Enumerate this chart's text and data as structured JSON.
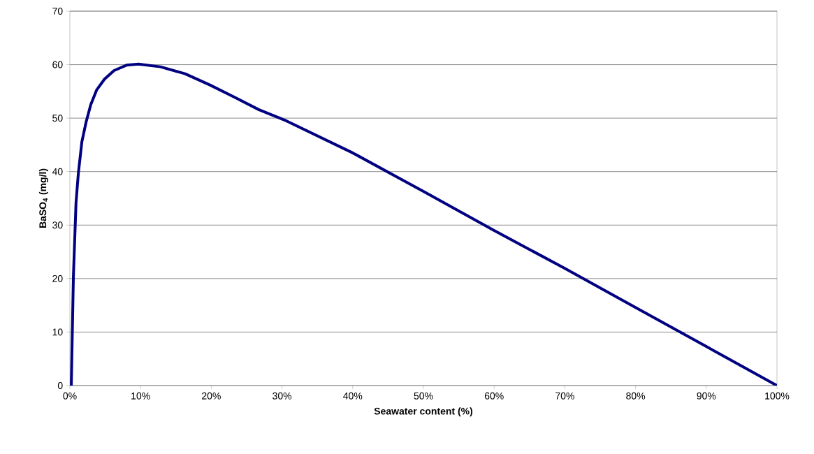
{
  "chart_data": {
    "type": "line",
    "xlabel": "Seawater content (%)",
    "ylabel": "BaSO$_{4}$ (mg/l)",
    "x": [
      0.2,
      0.5,
      0.87,
      1.2,
      1.7,
      2.3,
      2.95,
      3.8,
      4.9,
      6.25,
      8,
      9.7,
      12.8,
      16.3,
      19.8,
      23.3,
      26.7,
      30.6,
      40,
      50,
      60,
      70,
      80,
      90,
      100
    ],
    "series": [
      {
        "color": "#000080",
        "values": [
          0,
          20.4,
          34.2,
          39.7,
          45.6,
          49.3,
          52.5,
          55.3,
          57.3,
          58.9,
          59.9,
          60.1,
          59.6,
          58.3,
          56.2,
          53.9,
          51.6,
          49.5,
          43.5,
          36.3,
          29,
          21.9,
          14.6,
          7.3,
          0
        ]
      }
    ],
    "xlim": [
      0,
      100
    ],
    "ylim": [
      0,
      70
    ],
    "xticks": [
      {
        "value": 0,
        "label": "0%"
      },
      {
        "value": 10,
        "label": "10%"
      },
      {
        "value": 20,
        "label": "20%"
      },
      {
        "value": 30,
        "label": "30%"
      },
      {
        "value": 40,
        "label": "40%"
      },
      {
        "value": 50,
        "label": "50%"
      },
      {
        "value": 60,
        "label": "60%"
      },
      {
        "value": 70,
        "label": "70%"
      },
      {
        "value": 80,
        "label": "80%"
      },
      {
        "value": 90,
        "label": "90%"
      },
      {
        "value": 100,
        "label": "100%"
      }
    ],
    "yticks": [
      0,
      10,
      20,
      30,
      40,
      50,
      60,
      70
    ],
    "grid": "y",
    "marker": "none",
    "line_style": "solid"
  }
}
